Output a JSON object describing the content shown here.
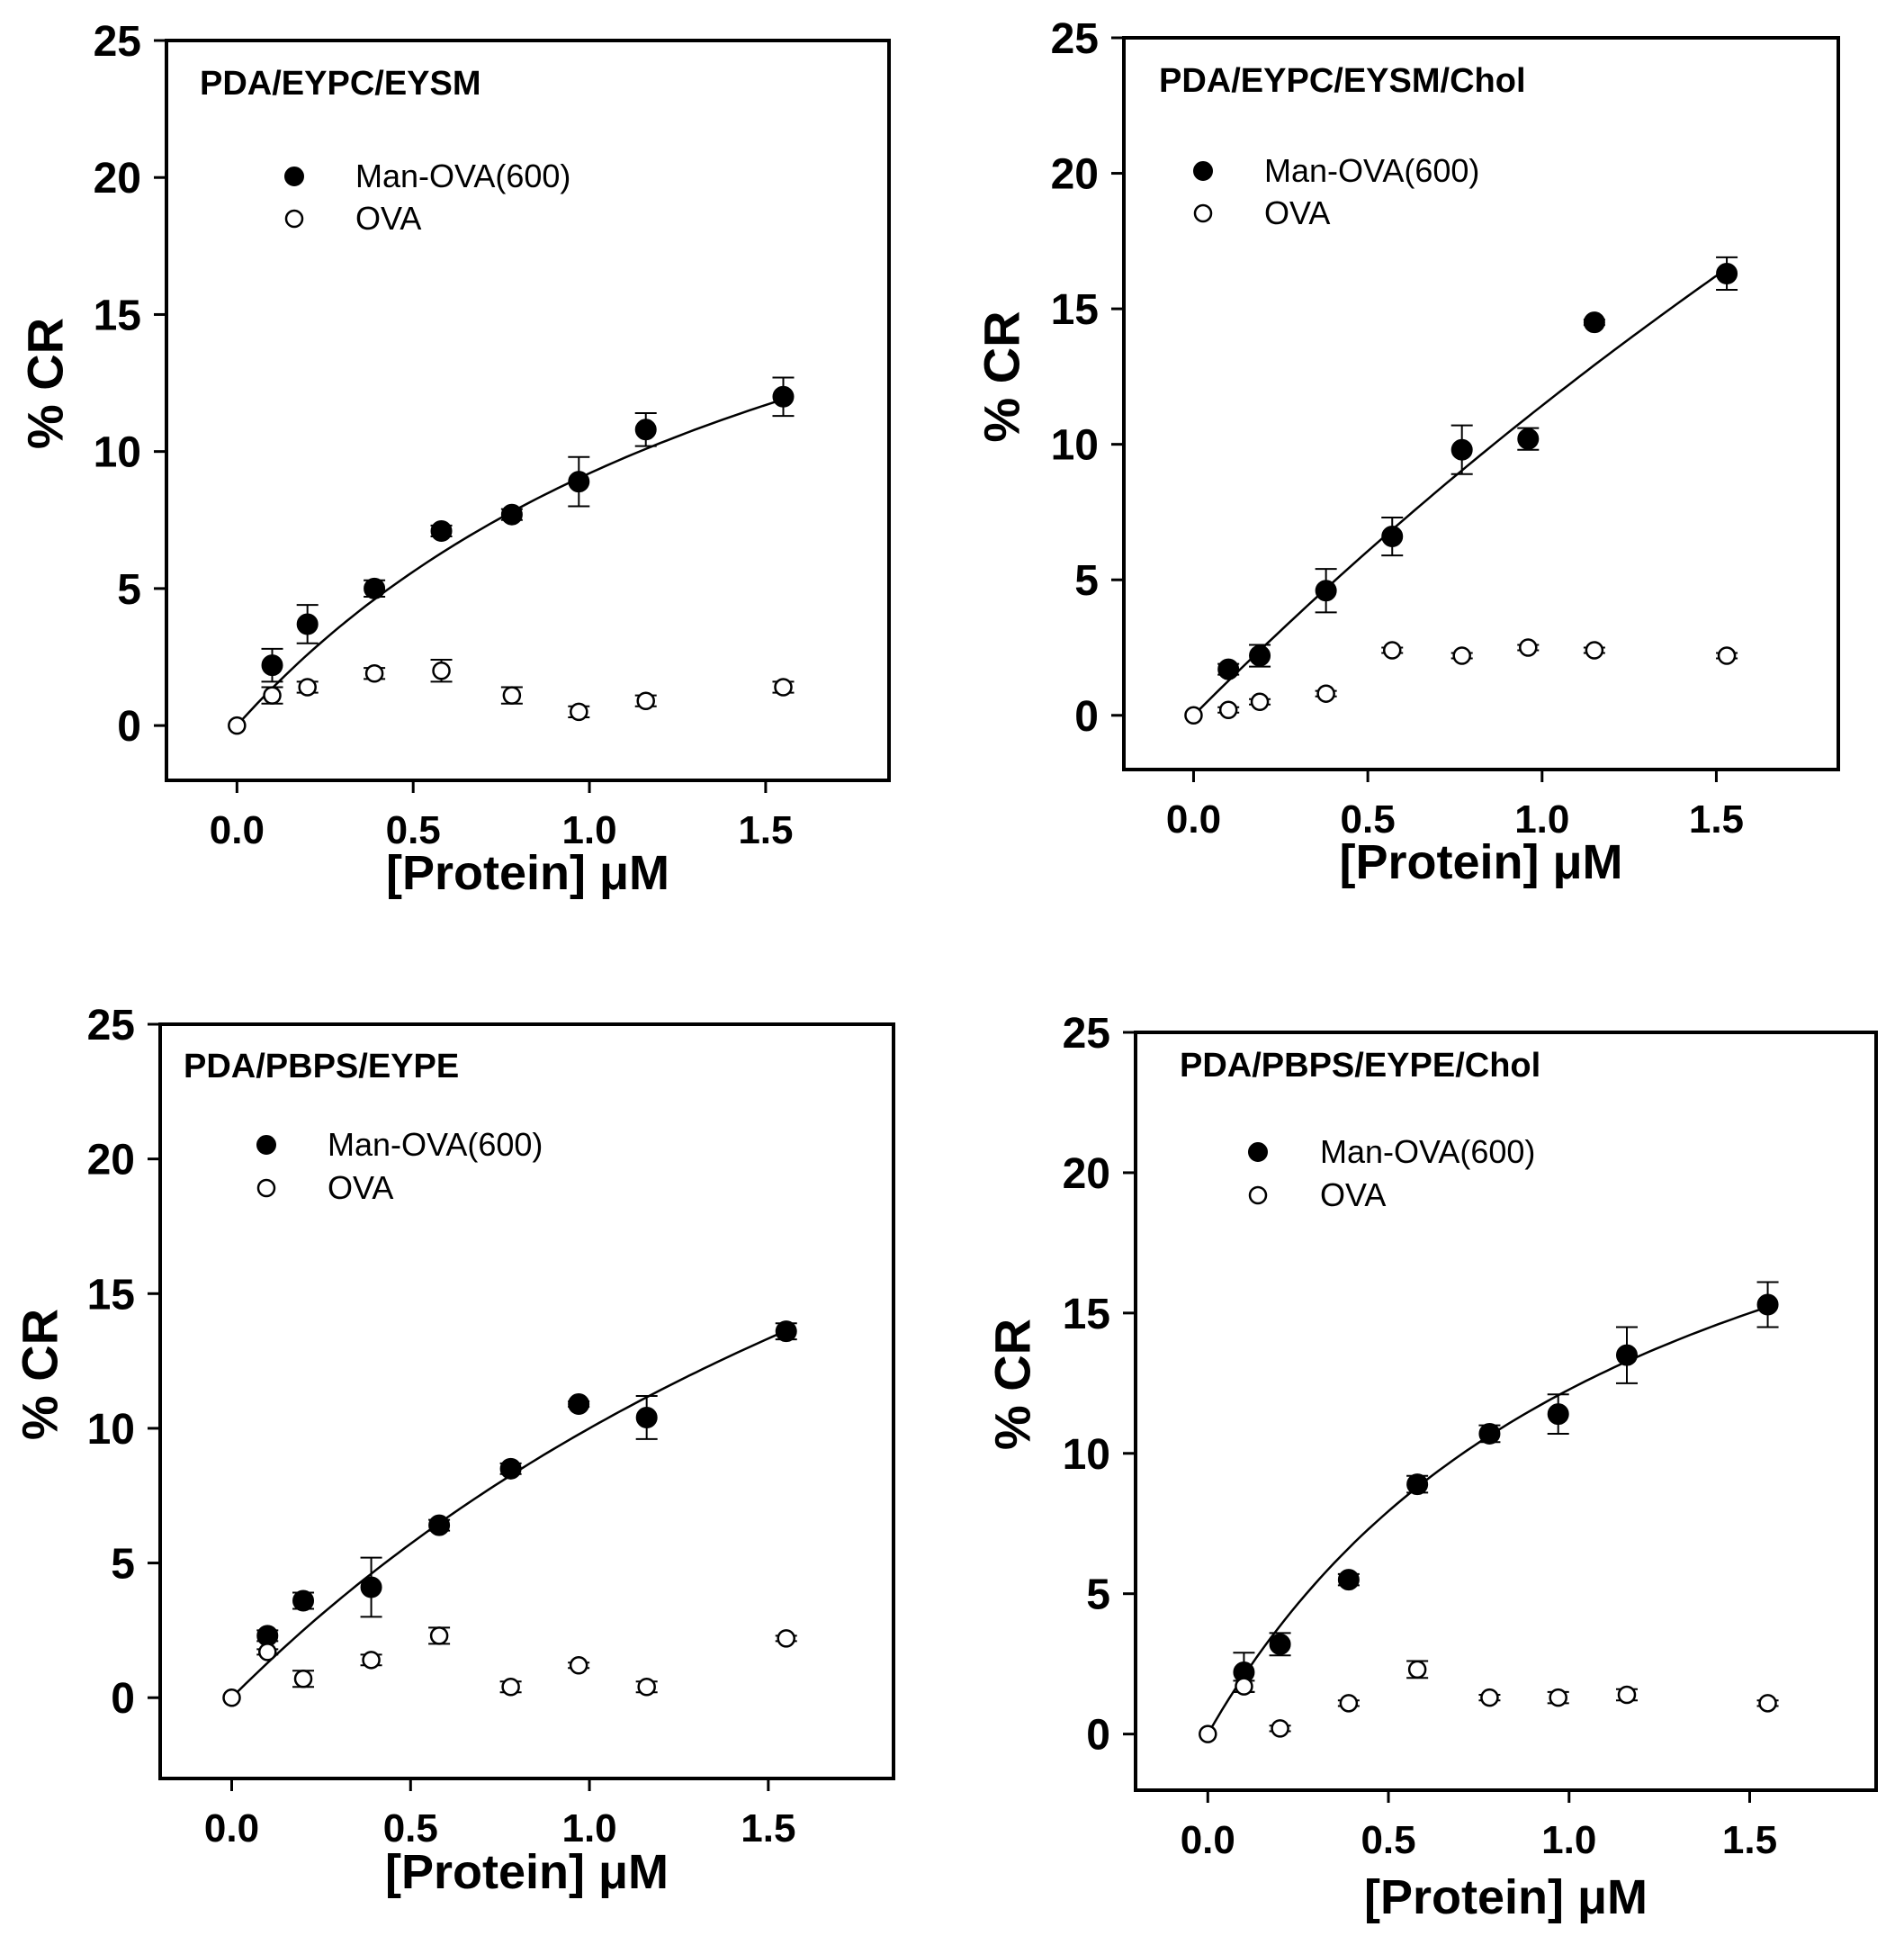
{
  "chart_data": [
    {
      "type": "scatter",
      "title": "PDA/EYPC/EYSM",
      "xlabel": "[Protein] μM",
      "ylabel": "% CR",
      "xlim": [
        -0.2,
        1.85
      ],
      "ylim": [
        -2,
        25
      ],
      "xticks": [
        "0.0",
        "0.5",
        "1.0",
        "1.5"
      ],
      "yticks": [
        "0",
        "5",
        "10",
        "15",
        "20",
        "25"
      ],
      "series": [
        {
          "name": "Man-OVA(600)",
          "marker": "filled-circle",
          "x": [
            0.1,
            0.2,
            0.39,
            0.58,
            0.78,
            0.97,
            1.16,
            1.55
          ],
          "y": [
            2.2,
            3.7,
            5.0,
            7.1,
            7.7,
            8.9,
            10.8,
            12.0
          ],
          "err": [
            0.6,
            0.7,
            0.3,
            0.2,
            0.2,
            0.9,
            0.6,
            0.7
          ]
        },
        {
          "name": "OVA",
          "marker": "open-circle",
          "x": [
            0.0,
            0.1,
            0.2,
            0.39,
            0.58,
            0.78,
            0.97,
            1.16,
            1.55
          ],
          "y": [
            0.0,
            1.1,
            1.4,
            1.9,
            2.0,
            1.1,
            0.5,
            0.9,
            1.4
          ],
          "err": [
            0,
            0.3,
            0.2,
            0.2,
            0.4,
            0.3,
            0.2,
            0.2,
            0.2
          ]
        }
      ],
      "fit_curve": {
        "type": "hyperbolic",
        "max": 25.5,
        "k": 1.77
      }
    },
    {
      "type": "scatter",
      "title": "PDA/EYPC/EYSM/Chol",
      "xlabel": "[Protein] μM",
      "ylabel": "% CR",
      "xlim": [
        -0.2,
        1.85
      ],
      "ylim": [
        -2,
        25
      ],
      "xticks": [
        "0.0",
        "0.5",
        "1.0",
        "1.5"
      ],
      "yticks": [
        "0",
        "5",
        "10",
        "15",
        "20",
        "25"
      ],
      "series": [
        {
          "name": "Man-OVA(600)",
          "marker": "filled-circle",
          "x": [
            0.1,
            0.19,
            0.38,
            0.57,
            0.77,
            0.96,
            1.15,
            1.53
          ],
          "y": [
            1.7,
            2.2,
            4.6,
            6.6,
            9.8,
            10.2,
            14.5,
            16.3
          ],
          "err": [
            0.2,
            0.4,
            0.8,
            0.7,
            0.9,
            0.4,
            0.1,
            0.6
          ]
        },
        {
          "name": "OVA",
          "marker": "open-circle",
          "x": [
            0.0,
            0.1,
            0.19,
            0.38,
            0.57,
            0.77,
            0.96,
            1.15,
            1.53
          ],
          "y": [
            0.0,
            0.2,
            0.5,
            0.8,
            2.4,
            2.2,
            2.5,
            2.4,
            2.2
          ],
          "err": [
            0,
            0.1,
            0.1,
            0.1,
            0.1,
            0.1,
            0.1,
            0.1,
            0.1
          ]
        }
      ],
      "fit_curve": {
        "type": "hyperbolic",
        "max": 100,
        "k": 7.75
      }
    },
    {
      "type": "scatter",
      "title": "PDA/PBPS/EYPE",
      "xlabel": "[Protein] μM",
      "ylabel": "% CR",
      "xlim": [
        -0.2,
        1.85
      ],
      "ylim": [
        -3,
        25
      ],
      "xticks": [
        "0.0",
        "0.5",
        "1.0",
        "1.5"
      ],
      "yticks": [
        "0",
        "5",
        "10",
        "15",
        "20",
        "25"
      ],
      "series": [
        {
          "name": "Man-OVA(600)",
          "marker": "filled-circle",
          "x": [
            0.1,
            0.2,
            0.39,
            0.58,
            0.78,
            0.97,
            1.16,
            1.55
          ],
          "y": [
            2.3,
            3.6,
            4.1,
            6.4,
            8.5,
            10.9,
            10.4,
            13.6
          ],
          "err": [
            0.2,
            0.3,
            1.1,
            0.2,
            0.2,
            0.1,
            0.8,
            0.3
          ]
        },
        {
          "name": "OVA",
          "marker": "open-circle",
          "x": [
            0.0,
            0.1,
            0.2,
            0.39,
            0.58,
            0.78,
            0.97,
            1.16,
            1.55
          ],
          "y": [
            0.0,
            1.7,
            0.7,
            1.4,
            2.3,
            0.4,
            1.2,
            0.4,
            2.2
          ],
          "err": [
            0,
            0.1,
            0.3,
            0.2,
            0.3,
            0.2,
            0.1,
            0.2,
            0.1
          ]
        }
      ],
      "fit_curve": {
        "type": "hyperbolic",
        "max": 40,
        "k": 3.0
      }
    },
    {
      "type": "scatter",
      "title": "PDA/PBPS/EYPE/Chol",
      "xlabel": "[Protein] μM",
      "ylabel": "% CR",
      "xlim": [
        -0.2,
        1.85
      ],
      "ylim": [
        -2,
        25
      ],
      "xticks": [
        "0.0",
        "0.5",
        "1.0",
        "1.5"
      ],
      "yticks": [
        "0",
        "5",
        "10",
        "15",
        "20",
        "25"
      ],
      "series": [
        {
          "name": "Man-OVA(600)",
          "marker": "filled-circle",
          "x": [
            0.1,
            0.2,
            0.39,
            0.58,
            0.78,
            0.97,
            1.16,
            1.55
          ],
          "y": [
            2.2,
            3.2,
            5.5,
            8.9,
            10.7,
            11.4,
            13.5,
            15.3
          ],
          "err": [
            0.7,
            0.4,
            0.2,
            0.3,
            0.3,
            0.7,
            1.0,
            0.8
          ]
        },
        {
          "name": "OVA",
          "marker": "open-circle",
          "x": [
            0.0,
            0.1,
            0.2,
            0.39,
            0.58,
            0.78,
            0.97,
            1.16,
            1.55
          ],
          "y": [
            0.0,
            1.7,
            0.2,
            1.1,
            2.3,
            1.3,
            1.3,
            1.4,
            1.1
          ],
          "err": [
            0,
            0.2,
            0.1,
            0.1,
            0.3,
            0.1,
            0.2,
            0.2,
            0.1
          ]
        }
      ],
      "fit_curve": {
        "type": "hyperbolic",
        "max": 27,
        "k": 1.2
      }
    }
  ]
}
